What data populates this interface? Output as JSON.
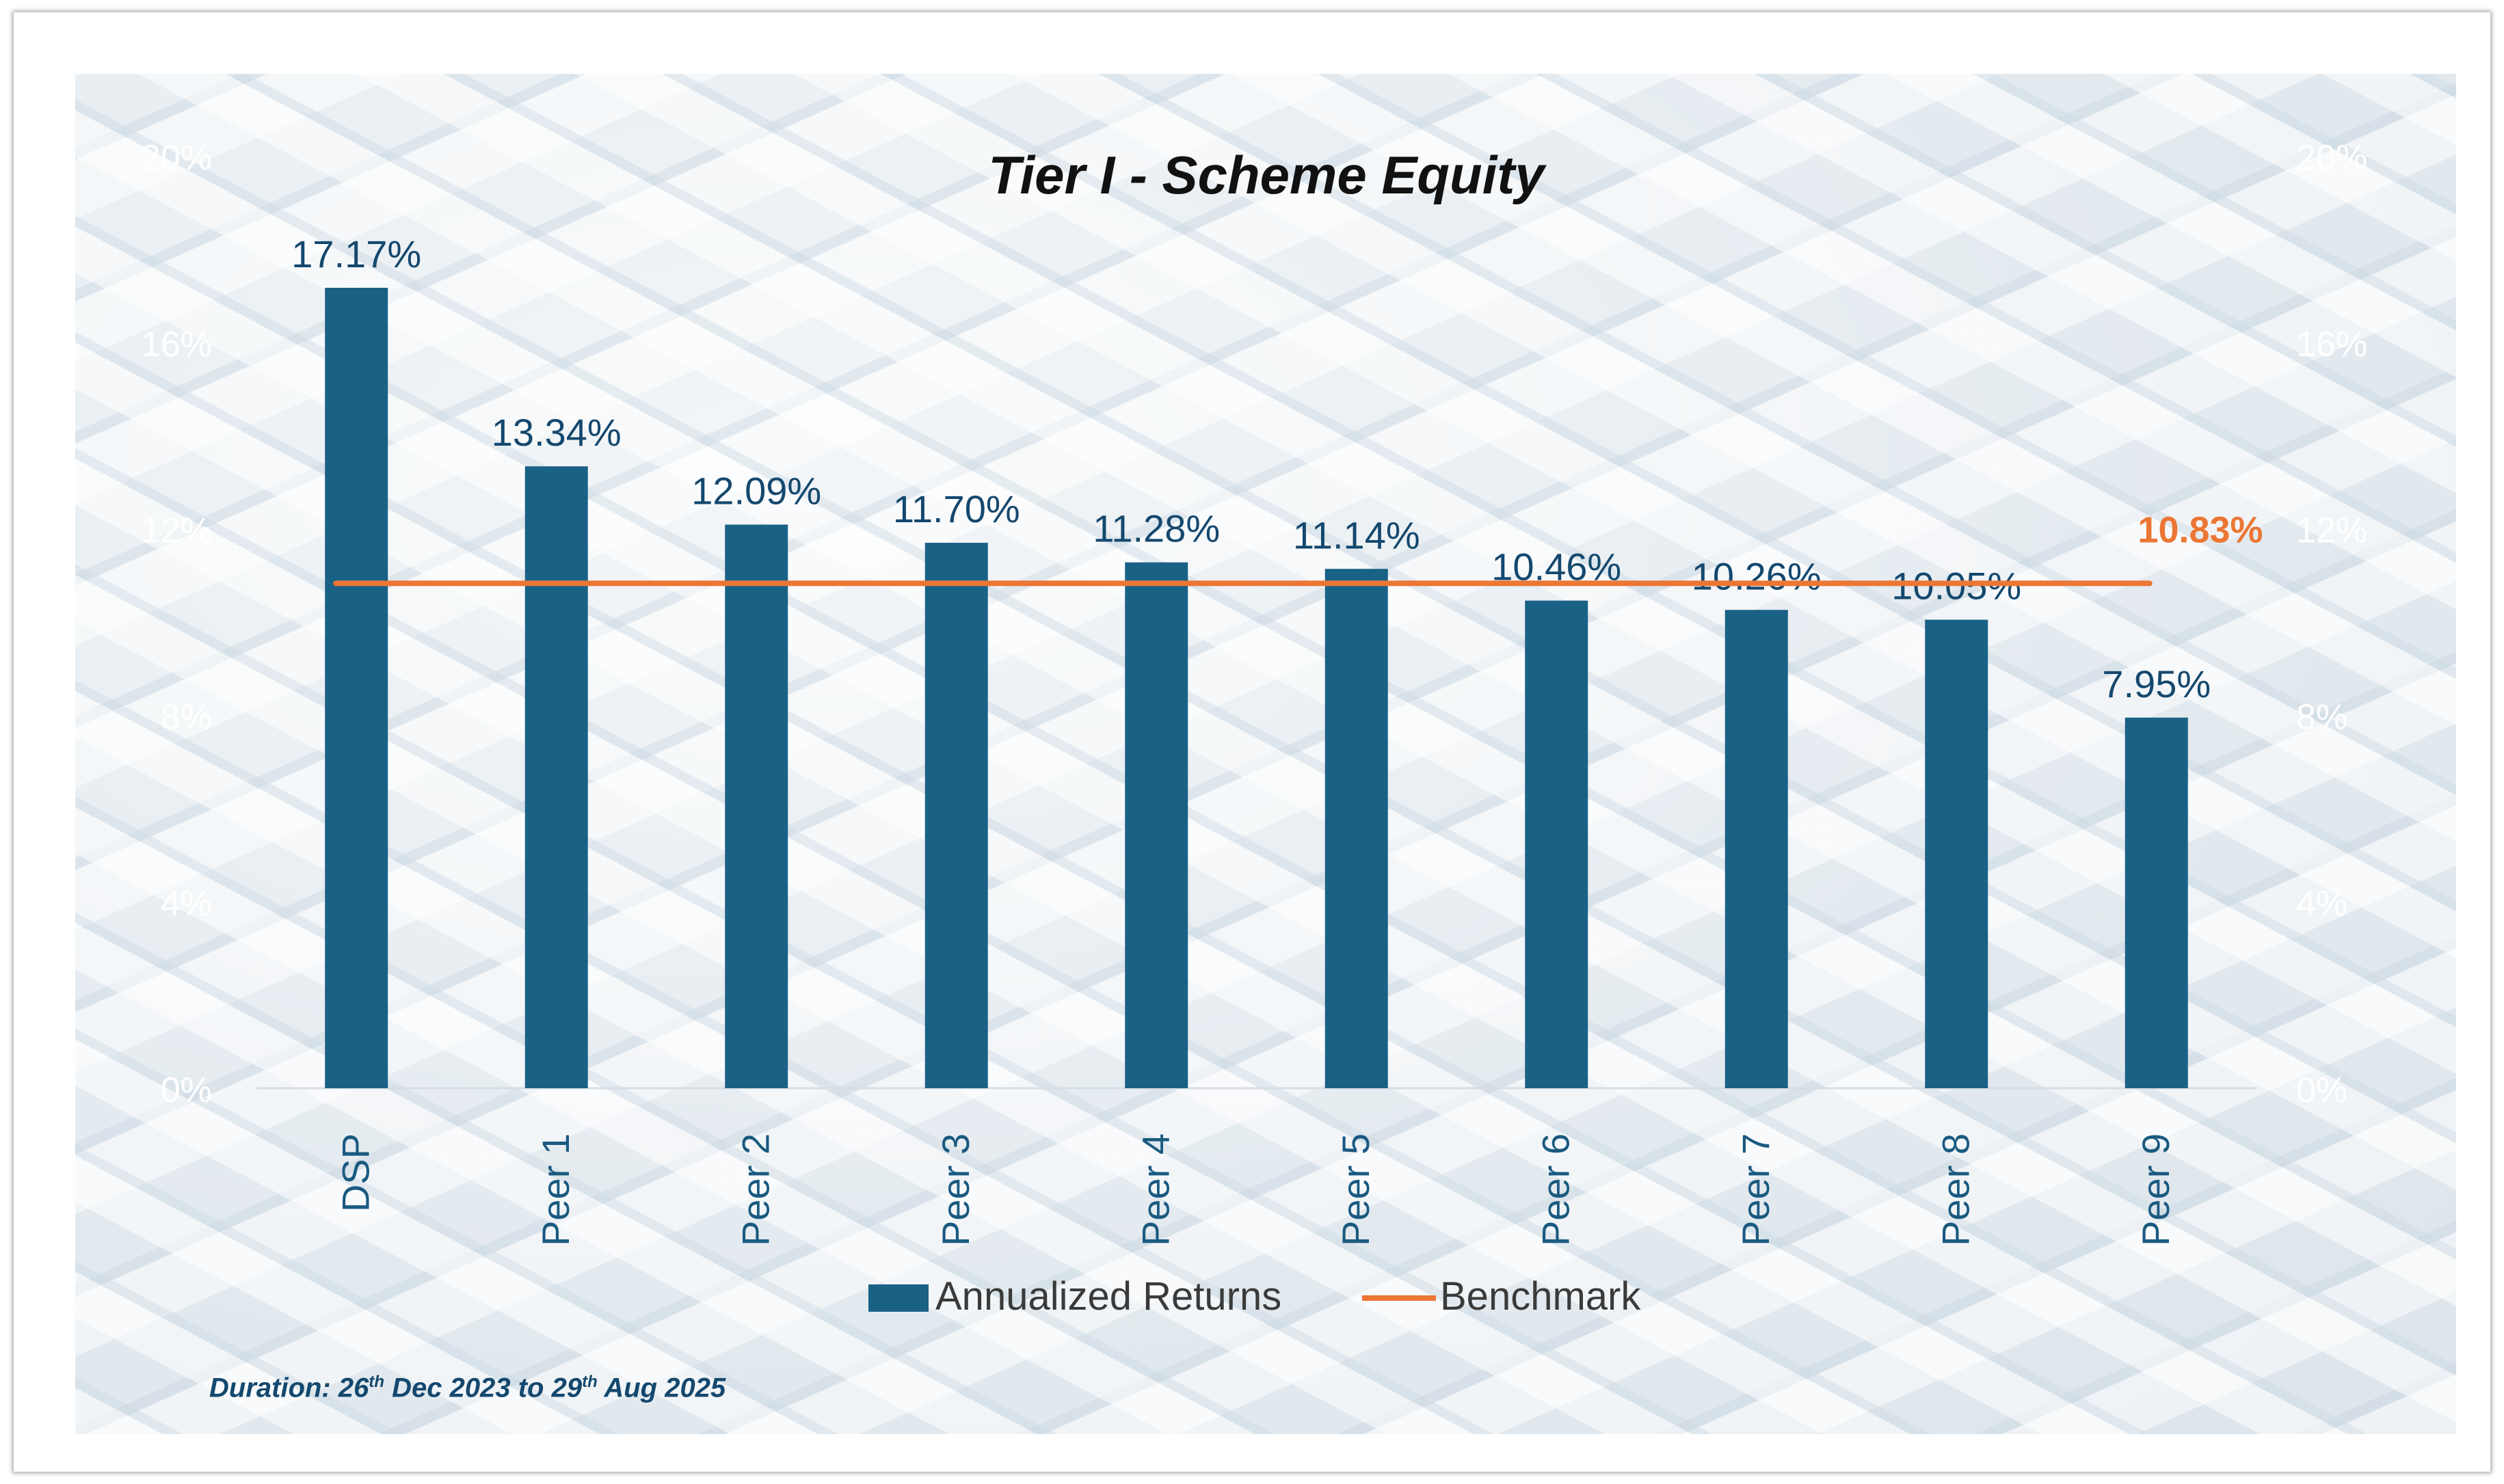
{
  "chart_data": {
    "type": "bar",
    "title": "Tier I - Scheme Equity",
    "categories": [
      "DSP",
      "Peer 1",
      "Peer 2",
      "Peer 3",
      "Peer 4",
      "Peer 5",
      "Peer 6",
      "Peer 7",
      "Peer 8",
      "Peer 9"
    ],
    "series": [
      {
        "name": "Annualized Returns",
        "type": "bar",
        "values": [
          17.17,
          13.34,
          12.09,
          11.7,
          11.28,
          11.14,
          10.46,
          10.26,
          10.05,
          7.95
        ],
        "labels": [
          "17.17%",
          "13.34%",
          "12.09%",
          "11.70%",
          "11.28%",
          "11.14%",
          "10.46%",
          "10.26%",
          "10.05%",
          "7.95%"
        ],
        "color": "#1a6186"
      },
      {
        "name": "Benchmark",
        "type": "line",
        "value": 10.83,
        "label": "10.83%",
        "color": "#ec7634"
      }
    ],
    "y_ticks": [
      "0%",
      "4%",
      "8%",
      "12%",
      "16%",
      "20%"
    ],
    "y_tick_values": [
      0,
      4,
      8,
      12,
      16,
      20
    ],
    "ylim": [
      0,
      20
    ],
    "y_axis": "both sides",
    "grid": false,
    "legend_position": "bottom"
  },
  "footnote": {
    "prefix": "Duration: 26",
    "sup1": "th",
    "middle": " Dec 2023 to 29",
    "sup2": "th",
    "suffix": "  Aug 2025"
  }
}
